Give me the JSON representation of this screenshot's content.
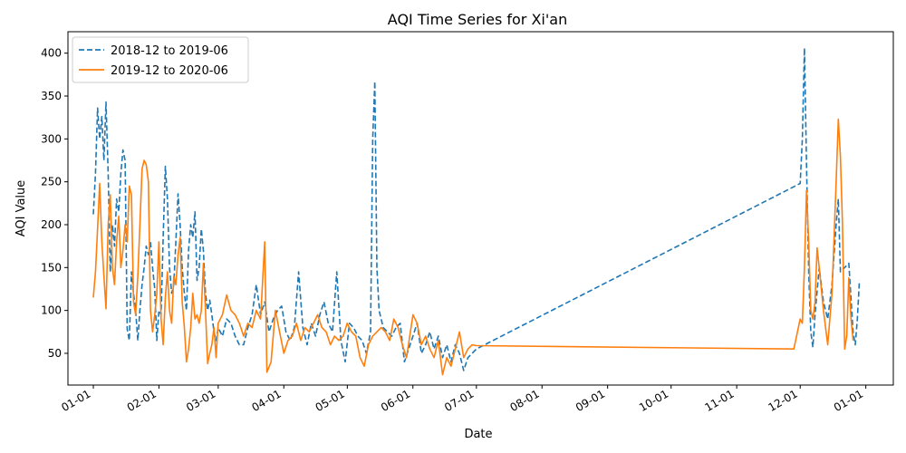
{
  "chart_data": {
    "type": "line",
    "title": "AQI Time Series for Xi'an",
    "xlabel": "Date",
    "ylabel": "AQI Value",
    "x_ticks": [
      "01-01",
      "02-01",
      "03-01",
      "04-01",
      "05-01",
      "06-01",
      "07-01",
      "08-01",
      "09-01",
      "10-01",
      "11-01",
      "12-01",
      "01-01"
    ],
    "x_tick_days": [
      0,
      31,
      59,
      90,
      120,
      151,
      181,
      212,
      243,
      273,
      304,
      334,
      365
    ],
    "xlim": [
      -12,
      378
    ],
    "y_ticks": [
      50,
      100,
      150,
      200,
      250,
      300,
      350,
      400
    ],
    "ylim": [
      13,
      425
    ],
    "grid": false,
    "legend_position": "top-left",
    "series": [
      {
        "name": "2018-12 to 2019-06",
        "color": "#1f77b4",
        "style": "dashed",
        "points": [
          [
            "01-01",
            212
          ],
          [
            "01-02",
            260
          ],
          [
            "01-03",
            336
          ],
          [
            "01-04",
            300
          ],
          [
            "01-05",
            326
          ],
          [
            "01-06",
            275
          ],
          [
            "01-07",
            343
          ],
          [
            "01-08",
            260
          ],
          [
            "01-09",
            145
          ],
          [
            "01-10",
            200
          ],
          [
            "01-11",
            175
          ],
          [
            "01-12",
            230
          ],
          [
            "01-13",
            215
          ],
          [
            "01-14",
            260
          ],
          [
            "01-15",
            287
          ],
          [
            "01-16",
            275
          ],
          [
            "01-17",
            78
          ],
          [
            "01-18",
            65
          ],
          [
            "01-19",
            145
          ],
          [
            "01-20",
            120
          ],
          [
            "01-21",
            100
          ],
          [
            "01-22",
            65
          ],
          [
            "01-23",
            100
          ],
          [
            "01-24",
            130
          ],
          [
            "01-25",
            150
          ],
          [
            "01-26",
            175
          ],
          [
            "01-27",
            165
          ],
          [
            "01-28",
            180
          ],
          [
            "01-29",
            150
          ],
          [
            "01-30",
            125
          ],
          [
            "01-31",
            65
          ],
          [
            "02-01",
            100
          ],
          [
            "02-02",
            95
          ],
          [
            "02-03",
            185
          ],
          [
            "02-04",
            268
          ],
          [
            "02-05",
            230
          ],
          [
            "02-06",
            150
          ],
          [
            "02-07",
            120
          ],
          [
            "02-08",
            130
          ],
          [
            "02-09",
            180
          ],
          [
            "02-10",
            236
          ],
          [
            "02-11",
            200
          ],
          [
            "02-12",
            150
          ],
          [
            "02-13",
            120
          ],
          [
            "02-14",
            100
          ],
          [
            "02-15",
            170
          ],
          [
            "02-16",
            200
          ],
          [
            "02-17",
            185
          ],
          [
            "02-18",
            215
          ],
          [
            "02-19",
            135
          ],
          [
            "02-20",
            150
          ],
          [
            "02-21",
            195
          ],
          [
            "02-22",
            170
          ],
          [
            "02-23",
            120
          ],
          [
            "02-24",
            100
          ],
          [
            "02-25",
            112
          ],
          [
            "02-26",
            95
          ],
          [
            "02-27",
            75
          ],
          [
            "02-28",
            65
          ],
          [
            "03-01",
            80
          ],
          [
            "03-03",
            70
          ],
          [
            "03-05",
            90
          ],
          [
            "03-07",
            85
          ],
          [
            "03-09",
            70
          ],
          [
            "03-11",
            60
          ],
          [
            "03-13",
            60
          ],
          [
            "03-15",
            80
          ],
          [
            "03-17",
            95
          ],
          [
            "03-19",
            130
          ],
          [
            "03-21",
            95
          ],
          [
            "03-23",
            110
          ],
          [
            "03-25",
            75
          ],
          [
            "03-27",
            90
          ],
          [
            "03-29",
            100
          ],
          [
            "03-31",
            105
          ],
          [
            "04-02",
            75
          ],
          [
            "04-04",
            65
          ],
          [
            "04-06",
            80
          ],
          [
            "04-08",
            145
          ],
          [
            "04-10",
            80
          ],
          [
            "04-12",
            60
          ],
          [
            "04-14",
            85
          ],
          [
            "04-16",
            70
          ],
          [
            "04-18",
            95
          ],
          [
            "04-20",
            110
          ],
          [
            "04-22",
            85
          ],
          [
            "04-24",
            75
          ],
          [
            "04-26",
            145
          ],
          [
            "04-28",
            65
          ],
          [
            "04-30",
            40
          ],
          [
            "05-02",
            85
          ],
          [
            "05-04",
            80
          ],
          [
            "05-06",
            70
          ],
          [
            "05-08",
            65
          ],
          [
            "05-10",
            50
          ],
          [
            "05-12",
            75
          ],
          [
            "05-13",
            300
          ],
          [
            "05-14",
            367
          ],
          [
            "05-15",
            150
          ],
          [
            "05-16",
            100
          ],
          [
            "05-18",
            80
          ],
          [
            "05-20",
            75
          ],
          [
            "05-22",
            70
          ],
          [
            "05-24",
            80
          ],
          [
            "05-26",
            85
          ],
          [
            "05-28",
            40
          ],
          [
            "05-30",
            55
          ],
          [
            "06-01",
            70
          ],
          [
            "06-03",
            85
          ],
          [
            "06-05",
            50
          ],
          [
            "06-07",
            60
          ],
          [
            "06-09",
            75
          ],
          [
            "06-11",
            55
          ],
          [
            "06-13",
            70
          ],
          [
            "06-15",
            45
          ],
          [
            "06-17",
            60
          ],
          [
            "06-19",
            40
          ],
          [
            "06-21",
            60
          ],
          [
            "06-23",
            50
          ],
          [
            "06-25",
            30
          ],
          [
            "06-27",
            45
          ],
          [
            "06-29",
            50
          ],
          [
            "07-01",
            55
          ],
          [
            "12-01",
            248
          ],
          [
            "12-02",
            300
          ],
          [
            "12-03",
            406
          ],
          [
            "12-04",
            270
          ],
          [
            "12-05",
            145
          ],
          [
            "12-06",
            75
          ],
          [
            "12-07",
            57
          ],
          [
            "12-08",
            95
          ],
          [
            "12-10",
            150
          ],
          [
            "12-12",
            110
          ],
          [
            "12-14",
            90
          ],
          [
            "12-16",
            130
          ],
          [
            "12-18",
            200
          ],
          [
            "12-19",
            230
          ],
          [
            "12-20",
            145
          ],
          [
            "12-22",
            150
          ],
          [
            "12-24",
            155
          ],
          [
            "12-26",
            75
          ],
          [
            "12-27",
            60
          ],
          [
            "12-28",
            90
          ],
          [
            "12-29",
            135
          ]
        ]
      },
      {
        "name": "2019-12 to 2020-06",
        "color": "#ff7f0e",
        "style": "solid",
        "points": [
          [
            "01-01",
            115
          ],
          [
            "01-02",
            145
          ],
          [
            "01-03",
            195
          ],
          [
            "01-04",
            248
          ],
          [
            "01-05",
            180
          ],
          [
            "01-06",
            140
          ],
          [
            "01-07",
            102
          ],
          [
            "01-08",
            200
          ],
          [
            "01-09",
            235
          ],
          [
            "01-10",
            150
          ],
          [
            "01-11",
            130
          ],
          [
            "01-12",
            180
          ],
          [
            "01-13",
            210
          ],
          [
            "01-14",
            150
          ],
          [
            "01-15",
            170
          ],
          [
            "01-16",
            200
          ],
          [
            "01-17",
            180
          ],
          [
            "01-18",
            245
          ],
          [
            "01-19",
            235
          ],
          [
            "01-20",
            110
          ],
          [
            "01-21",
            95
          ],
          [
            "01-22",
            140
          ],
          [
            "01-23",
            200
          ],
          [
            "01-24",
            265
          ],
          [
            "01-25",
            275
          ],
          [
            "01-26",
            270
          ],
          [
            "01-27",
            250
          ],
          [
            "01-28",
            100
          ],
          [
            "01-29",
            75
          ],
          [
            "01-30",
            95
          ],
          [
            "01-31",
            120
          ],
          [
            "02-01",
            180
          ],
          [
            "02-02",
            90
          ],
          [
            "02-03",
            60
          ],
          [
            "02-04",
            115
          ],
          [
            "02-05",
            145
          ],
          [
            "02-06",
            100
          ],
          [
            "02-07",
            85
          ],
          [
            "02-08",
            140
          ],
          [
            "02-09",
            130
          ],
          [
            "02-10",
            165
          ],
          [
            "02-11",
            185
          ],
          [
            "02-12",
            110
          ],
          [
            "02-13",
            80
          ],
          [
            "02-14",
            40
          ],
          [
            "02-15",
            55
          ],
          [
            "02-16",
            80
          ],
          [
            "02-17",
            120
          ],
          [
            "02-18",
            90
          ],
          [
            "02-19",
            95
          ],
          [
            "02-20",
            85
          ],
          [
            "02-21",
            100
          ],
          [
            "02-22",
            155
          ],
          [
            "02-23",
            100
          ],
          [
            "02-24",
            38
          ],
          [
            "02-25",
            50
          ],
          [
            "02-26",
            60
          ],
          [
            "02-27",
            80
          ],
          [
            "02-28",
            45
          ],
          [
            "03-01",
            85
          ],
          [
            "03-03",
            95
          ],
          [
            "03-05",
            118
          ],
          [
            "03-07",
            100
          ],
          [
            "03-09",
            95
          ],
          [
            "03-11",
            85
          ],
          [
            "03-13",
            70
          ],
          [
            "03-15",
            85
          ],
          [
            "03-17",
            80
          ],
          [
            "03-19",
            100
          ],
          [
            "03-21",
            90
          ],
          [
            "03-23",
            180
          ],
          [
            "03-24",
            28
          ],
          [
            "03-26",
            40
          ],
          [
            "03-28",
            100
          ],
          [
            "03-30",
            75
          ],
          [
            "04-01",
            50
          ],
          [
            "04-03",
            65
          ],
          [
            "04-05",
            70
          ],
          [
            "04-07",
            85
          ],
          [
            "04-09",
            65
          ],
          [
            "04-11",
            80
          ],
          [
            "04-13",
            75
          ],
          [
            "04-15",
            85
          ],
          [
            "04-17",
            95
          ],
          [
            "04-19",
            80
          ],
          [
            "04-21",
            75
          ],
          [
            "04-23",
            60
          ],
          [
            "04-25",
            70
          ],
          [
            "04-27",
            65
          ],
          [
            "04-29",
            70
          ],
          [
            "05-01",
            85
          ],
          [
            "05-03",
            75
          ],
          [
            "05-05",
            70
          ],
          [
            "05-07",
            45
          ],
          [
            "05-09",
            35
          ],
          [
            "05-11",
            60
          ],
          [
            "05-13",
            70
          ],
          [
            "05-15",
            75
          ],
          [
            "05-17",
            80
          ],
          [
            "05-19",
            75
          ],
          [
            "05-21",
            65
          ],
          [
            "05-23",
            90
          ],
          [
            "05-25",
            80
          ],
          [
            "05-27",
            60
          ],
          [
            "05-29",
            45
          ],
          [
            "06-01",
            95
          ],
          [
            "06-03",
            85
          ],
          [
            "06-05",
            60
          ],
          [
            "06-07",
            70
          ],
          [
            "06-09",
            55
          ],
          [
            "06-11",
            45
          ],
          [
            "06-13",
            65
          ],
          [
            "06-15",
            25
          ],
          [
            "06-17",
            45
          ],
          [
            "06-19",
            35
          ],
          [
            "06-21",
            55
          ],
          [
            "06-23",
            75
          ],
          [
            "06-25",
            45
          ],
          [
            "06-27",
            55
          ],
          [
            "06-29",
            60
          ],
          [
            "07-01",
            59
          ],
          [
            "11-28",
            55
          ],
          [
            "12-01",
            90
          ],
          [
            "12-02",
            85
          ],
          [
            "12-03",
            150
          ],
          [
            "12-04",
            240
          ],
          [
            "12-05",
            180
          ],
          [
            "12-06",
            100
          ],
          [
            "12-07",
            90
          ],
          [
            "12-08",
            110
          ],
          [
            "12-09",
            173
          ],
          [
            "12-10",
            150
          ],
          [
            "12-12",
            100
          ],
          [
            "12-14",
            60
          ],
          [
            "12-16",
            120
          ],
          [
            "12-18",
            250
          ],
          [
            "12-19",
            323
          ],
          [
            "12-20",
            280
          ],
          [
            "12-21",
            200
          ],
          [
            "12-22",
            55
          ],
          [
            "12-23",
            70
          ],
          [
            "12-24",
            138
          ],
          [
            "12-25",
            90
          ],
          [
            "12-26",
            65
          ]
        ]
      }
    ]
  }
}
